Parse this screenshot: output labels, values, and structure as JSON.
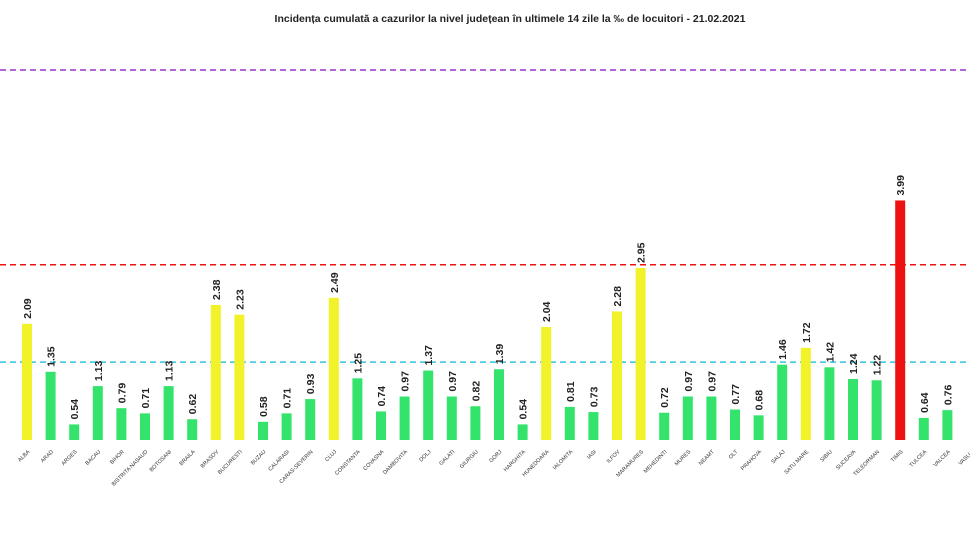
{
  "chart_data": {
    "type": "bar",
    "title": "Incidența cumulată a cazurilor la nivel județean în ultimele 14 zile la ‰ de locuitori - 21.02.2021",
    "categories": [
      "ALBA",
      "ARAD",
      "ARGES",
      "BACAU",
      "BIHOR",
      "BISTRITA NASAUD",
      "BOTOSANI",
      "BRAILA",
      "BRASOV",
      "BUCURESTI",
      "BUZAU",
      "CALARASI",
      "CARAS-SEVERIN",
      "CLUJ",
      "CONSTANTA",
      "COVASNA",
      "DAMBOVITA",
      "DOLJ",
      "GALATI",
      "GIURGIU",
      "GORJ",
      "HARGHITA",
      "HUNEDOARA",
      "IALOMITA",
      "IASI",
      "ILFOV",
      "MARAMURES",
      "MEHEDINTI",
      "MURES",
      "NEAMT",
      "OLT",
      "PRAHOVA",
      "SALAJ",
      "SATU MARE",
      "SIBIU",
      "SUCEAVA",
      "TELEORMAN",
      "TIMIS",
      "TULCEA",
      "VALCEA",
      "VASLUI"
    ],
    "values": [
      2.09,
      1.35,
      0.54,
      1.13,
      0.79,
      0.71,
      1.13,
      0.62,
      2.38,
      2.23,
      0.58,
      0.71,
      0.93,
      2.49,
      1.25,
      0.74,
      0.97,
      1.37,
      0.97,
      0.82,
      1.39,
      0.54,
      2.04,
      0.81,
      0.73,
      2.28,
      2.95,
      0.72,
      0.97,
      0.97,
      0.77,
      0.68,
      1.46,
      1.72,
      1.42,
      1.24,
      1.22,
      3.99,
      0.64,
      0.76,
      null
    ],
    "colors": [
      "#f2f22a",
      "#33e36b",
      "#33e36b",
      "#33e36b",
      "#33e36b",
      "#33e36b",
      "#33e36b",
      "#33e36b",
      "#f2f22a",
      "#f2f22a",
      "#33e36b",
      "#33e36b",
      "#33e36b",
      "#f2f22a",
      "#33e36b",
      "#33e36b",
      "#33e36b",
      "#33e36b",
      "#33e36b",
      "#33e36b",
      "#33e36b",
      "#33e36b",
      "#f2f22a",
      "#33e36b",
      "#33e36b",
      "#f2f22a",
      "#f2f22a",
      "#33e36b",
      "#33e36b",
      "#33e36b",
      "#33e36b",
      "#33e36b",
      "#33e36b",
      "#f2f22a",
      "#33e36b",
      "#33e36b",
      "#33e36b",
      "#ee1111",
      "#33e36b",
      "#33e36b",
      "#33e36b"
    ],
    "reference_lines": [
      {
        "value": 1.5,
        "color": "#33c5e0"
      },
      {
        "value": 3,
        "color": "#ee1111"
      },
      {
        "value": 6,
        "color": "#9933cc"
      }
    ],
    "ylim": [
      0.3,
      6.4
    ]
  }
}
